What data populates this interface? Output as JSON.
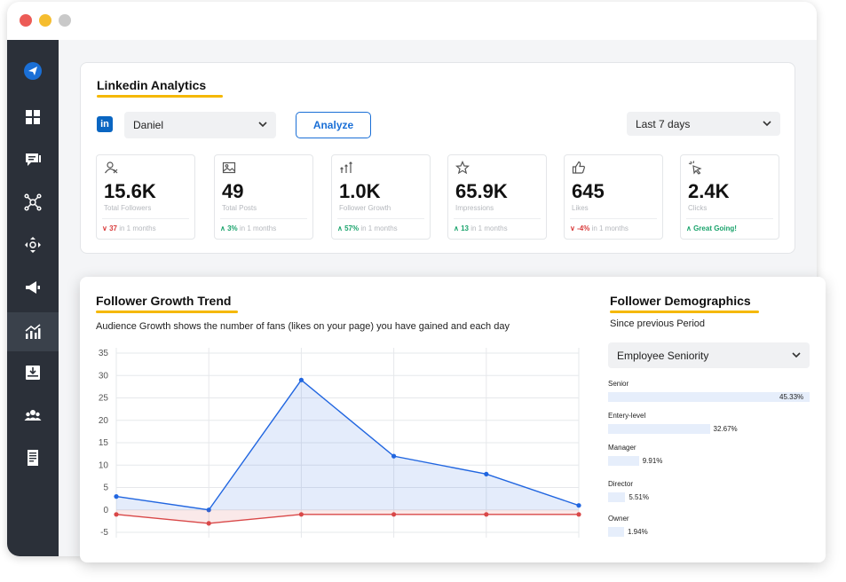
{
  "colors": {
    "accent": "#1a6fd6",
    "underline": "#f5b800",
    "up": "#19a36b",
    "down": "#d93b3b",
    "sidebar": "#2b3039"
  },
  "sidebar": {
    "items": [
      {
        "icon": "paper-plane-icon"
      },
      {
        "icon": "dashboard-icon"
      },
      {
        "icon": "chat-icon"
      },
      {
        "icon": "network-icon"
      },
      {
        "icon": "move-icon"
      },
      {
        "icon": "megaphone-icon"
      },
      {
        "icon": "analytics-icon",
        "active": true
      },
      {
        "icon": "download-tray-icon"
      },
      {
        "icon": "users-icon"
      },
      {
        "icon": "document-icon"
      }
    ]
  },
  "analytics": {
    "title": "Linkedin Analytics",
    "linkedin_badge": "in",
    "account": "Daniel",
    "analyze_label": "Analyze",
    "period": "Last 7 days",
    "stats": [
      {
        "icon": "user-icon",
        "value": "15.6K",
        "label": "Total Followers",
        "change": "37",
        "dir": "down",
        "suffix": "in 1 months"
      },
      {
        "icon": "image-icon",
        "value": "49",
        "label": "Total Posts",
        "change": "3%",
        "dir": "up",
        "suffix": "in 1 months"
      },
      {
        "icon": "growth-arrows-icon",
        "value": "1.0K",
        "label": "Follower Growth",
        "change": "57%",
        "dir": "up",
        "suffix": "in 1 months"
      },
      {
        "icon": "star-icon",
        "value": "65.9K",
        "label": "Impressions",
        "change": "13",
        "dir": "up",
        "suffix": "in 1 months"
      },
      {
        "icon": "thumbs-up-icon",
        "value": "645",
        "label": "Likes",
        "change": "-4%",
        "dir": "down",
        "suffix": "in 1 months"
      },
      {
        "icon": "cursor-click-icon",
        "value": "2.4K",
        "label": "Clicks",
        "change": "Great Going!",
        "dir": "up",
        "suffix": ""
      }
    ]
  },
  "growth": {
    "title": "Follower Growth Trend",
    "description": "Audience Growth shows the number of fans (likes on your page) you have gained and each day"
  },
  "chart_data": {
    "type": "area",
    "y_ticks": [
      35,
      30,
      25,
      20,
      15,
      10,
      5,
      0,
      -5
    ],
    "ylim": [
      -5,
      35
    ],
    "x": [
      0,
      1,
      2,
      3,
      4,
      5
    ],
    "grid": true,
    "series": [
      {
        "color": "#2166e0",
        "fill": "rgba(33,102,224,0.12)",
        "values": [
          3,
          0,
          29,
          12,
          8,
          1
        ]
      },
      {
        "color": "#d94848",
        "fill": "rgba(217,72,72,0.12)",
        "values": [
          -1,
          -3,
          -1,
          -1,
          -1,
          -1
        ]
      }
    ]
  },
  "demographics": {
    "title": "Follower Demographics",
    "since": "Since previous Period",
    "filter": "Employee Seniority",
    "items": [
      {
        "label": "Senior",
        "value": "45.33%",
        "pct": 45.33
      },
      {
        "label": "Entery-level",
        "value": "32.67%",
        "pct": 32.67
      },
      {
        "label": "Manager",
        "value": "9.91%",
        "pct": 9.91
      },
      {
        "label": "Director",
        "value": "5.51%",
        "pct": 5.51
      },
      {
        "label": "Owner",
        "value": "1.94%",
        "pct": 1.94
      }
    ]
  }
}
